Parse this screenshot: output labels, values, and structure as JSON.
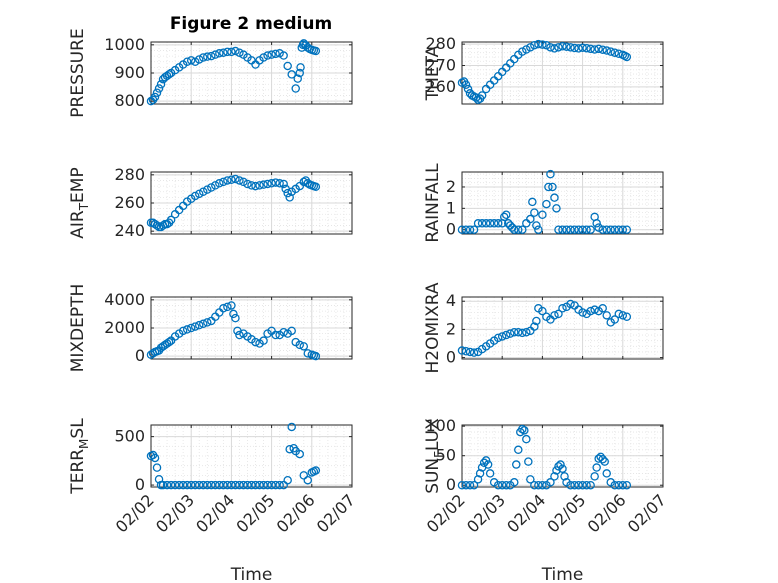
{
  "figure_title": "Figure 2 medium",
  "colors": {
    "marker": "#0072bd",
    "axis": "#262626",
    "grid": "#d9d9d9",
    "background": "#ffffff"
  },
  "chart_data": [
    {
      "type": "scatter",
      "ylabel": "PRESSURE",
      "ylabel_main": "PRESSURE",
      "ylabel_sub": "",
      "ylabel_rest": "",
      "title": "Figure 2 medium",
      "ylim": [
        790,
        1010
      ],
      "yticks": [
        800,
        900,
        1000
      ],
      "xticks": [
        "02/02",
        "02/03",
        "02/04",
        "02/05",
        "02/06",
        "02/07"
      ],
      "xlabel": "",
      "grid": true,
      "x": [
        0,
        0.05,
        0.1,
        0.15,
        0.2,
        0.25,
        0.3,
        0.35,
        0.4,
        0.45,
        0.5,
        0.6,
        0.7,
        0.8,
        0.9,
        1.0,
        1.1,
        1.2,
        1.3,
        1.4,
        1.5,
        1.6,
        1.7,
        1.8,
        1.9,
        2.0,
        2.1,
        2.2,
        2.3,
        2.4,
        2.5,
        2.6,
        2.7,
        2.8,
        2.9,
        3.0,
        3.1,
        3.2,
        3.3,
        3.4,
        3.5,
        3.6,
        3.65,
        3.7,
        3.72,
        3.75,
        3.78,
        3.8,
        3.85,
        3.9,
        3.95,
        4.0,
        4.05,
        4.1
      ],
      "y": [
        800,
        805,
        815,
        830,
        845,
        860,
        878,
        885,
        890,
        895,
        900,
        910,
        920,
        930,
        940,
        945,
        940,
        948,
        955,
        958,
        960,
        965,
        970,
        972,
        975,
        975,
        978,
        972,
        965,
        955,
        945,
        930,
        945,
        955,
        962,
        965,
        968,
        970,
        962,
        925,
        895,
        845,
        880,
        900,
        920,
        990,
        1000,
        1005,
        998,
        990,
        985,
        982,
        980,
        978
      ]
    },
    {
      "type": "scatter",
      "ylabel": "THETA",
      "ylabel_main": "THETA",
      "ylabel_sub": "",
      "ylabel_rest": "",
      "ylim": [
        252,
        281
      ],
      "yticks": [
        260,
        270,
        280
      ],
      "xticks": [
        "02/02",
        "02/03",
        "02/04",
        "02/05",
        "02/06",
        "02/07"
      ],
      "xlabel": "",
      "grid": true,
      "x": [
        0,
        0.05,
        0.1,
        0.15,
        0.2,
        0.25,
        0.3,
        0.35,
        0.4,
        0.45,
        0.5,
        0.6,
        0.7,
        0.8,
        0.9,
        1.0,
        1.1,
        1.2,
        1.3,
        1.4,
        1.5,
        1.6,
        1.7,
        1.8,
        1.9,
        2.0,
        2.1,
        2.2,
        2.3,
        2.4,
        2.5,
        2.6,
        2.7,
        2.8,
        2.9,
        3.0,
        3.1,
        3.2,
        3.3,
        3.4,
        3.5,
        3.6,
        3.7,
        3.8,
        3.9,
        4.0,
        4.05,
        4.1
      ],
      "y": [
        262,
        262.5,
        261,
        259,
        257,
        256,
        255.5,
        255,
        254,
        254.5,
        256,
        259,
        261,
        263,
        265,
        267,
        269,
        271,
        273,
        275,
        276.5,
        277.5,
        278.5,
        279.5,
        280,
        279.8,
        279.5,
        278.5,
        278,
        278.5,
        279,
        278.8,
        278.5,
        278.2,
        278,
        278.3,
        278.1,
        277.8,
        277.5,
        277.8,
        277.4,
        277,
        276.5,
        276,
        275.5,
        275,
        274.5,
        274
      ]
    },
    {
      "type": "scatter",
      "ylabel": "AIR_TEMP",
      "ylabel_main": "AIR",
      "ylabel_sub": "T",
      "ylabel_rest": "EMP",
      "ylim": [
        238,
        282
      ],
      "yticks": [
        240,
        260,
        280
      ],
      "xticks": [
        "02/02",
        "02/03",
        "02/04",
        "02/05",
        "02/06",
        "02/07"
      ],
      "xlabel": "",
      "grid": true,
      "x": [
        0,
        0.05,
        0.1,
        0.15,
        0.2,
        0.25,
        0.3,
        0.35,
        0.4,
        0.45,
        0.5,
        0.6,
        0.7,
        0.8,
        0.9,
        1.0,
        1.1,
        1.2,
        1.3,
        1.4,
        1.5,
        1.6,
        1.7,
        1.8,
        1.9,
        2.0,
        2.1,
        2.2,
        2.3,
        2.4,
        2.5,
        2.6,
        2.7,
        2.8,
        2.9,
        3.0,
        3.1,
        3.2,
        3.3,
        3.35,
        3.4,
        3.45,
        3.5,
        3.6,
        3.7,
        3.8,
        3.85,
        3.9,
        3.95,
        4.0,
        4.05,
        4.1
      ],
      "y": [
        246,
        246,
        245,
        244,
        243,
        243,
        244,
        245,
        245,
        246,
        248,
        252,
        255,
        258,
        261,
        263,
        265,
        266.5,
        268,
        269.5,
        271,
        272.5,
        274,
        275,
        276,
        276.5,
        277,
        276,
        275,
        273.5,
        272.5,
        272,
        272.5,
        273,
        273.5,
        274,
        274.5,
        274,
        273.5,
        270,
        267,
        264,
        268,
        270,
        272,
        275,
        276,
        274,
        273,
        272.5,
        272,
        271.5
      ]
    },
    {
      "type": "scatter",
      "ylabel": "RAINFALL",
      "ylabel_main": "RAINFALL",
      "ylabel_sub": "",
      "ylabel_rest": "",
      "ylim": [
        -0.2,
        2.7
      ],
      "yticks": [
        0,
        1,
        2
      ],
      "xticks": [
        "02/02",
        "02/03",
        "02/04",
        "02/05",
        "02/06",
        "02/07"
      ],
      "xlabel": "",
      "grid": true,
      "x": [
        0,
        0.1,
        0.2,
        0.3,
        0.4,
        0.5,
        0.6,
        0.7,
        0.8,
        0.9,
        1.0,
        1.05,
        1.1,
        1.15,
        1.2,
        1.25,
        1.3,
        1.4,
        1.5,
        1.6,
        1.7,
        1.75,
        1.8,
        1.85,
        1.9,
        2.0,
        2.1,
        2.15,
        2.2,
        2.25,
        2.3,
        2.35,
        2.4,
        2.5,
        2.6,
        2.7,
        2.8,
        2.9,
        3.0,
        3.1,
        3.2,
        3.3,
        3.35,
        3.4,
        3.5,
        3.6,
        3.7,
        3.8,
        3.9,
        4.0,
        4.1
      ],
      "y": [
        0,
        0,
        0,
        0,
        0.3,
        0.3,
        0.3,
        0.3,
        0.3,
        0.3,
        0.3,
        0.6,
        0.7,
        0.3,
        0.2,
        0.1,
        0,
        0,
        0,
        0.3,
        0.5,
        1.3,
        0.8,
        0.2,
        0,
        0.7,
        1.2,
        2.0,
        2.6,
        2.0,
        1.5,
        1.0,
        0,
        0,
        0,
        0,
        0,
        0,
        0,
        0,
        0,
        0.6,
        0.3,
        0.1,
        0,
        0,
        0,
        0,
        0,
        0,
        0
      ]
    },
    {
      "type": "scatter",
      "ylabel": "MIXDEPTH",
      "ylabel_main": "MIXDEPTH",
      "ylabel_sub": "",
      "ylabel_rest": "",
      "ylim": [
        -200,
        4200
      ],
      "yticks": [
        0,
        2000,
        4000
      ],
      "xticks": [
        "02/02",
        "02/03",
        "02/04",
        "02/05",
        "02/06",
        "02/07"
      ],
      "xlabel": "",
      "grid": true,
      "x": [
        0,
        0.05,
        0.1,
        0.15,
        0.2,
        0.25,
        0.3,
        0.35,
        0.4,
        0.45,
        0.5,
        0.6,
        0.7,
        0.8,
        0.9,
        1.0,
        1.1,
        1.2,
        1.3,
        1.4,
        1.5,
        1.6,
        1.7,
        1.8,
        1.9,
        2.0,
        2.05,
        2.1,
        2.15,
        2.2,
        2.3,
        2.4,
        2.5,
        2.6,
        2.7,
        2.8,
        2.9,
        3.0,
        3.1,
        3.2,
        3.3,
        3.4,
        3.5,
        3.6,
        3.7,
        3.8,
        3.9,
        4.0,
        4.05,
        4.1
      ],
      "y": [
        100,
        200,
        300,
        350,
        400,
        600,
        700,
        800,
        900,
        1000,
        1100,
        1400,
        1600,
        1800,
        1900,
        2000,
        2100,
        2200,
        2300,
        2400,
        2500,
        2800,
        3100,
        3400,
        3500,
        3600,
        3000,
        2700,
        1800,
        1500,
        1600,
        1400,
        1200,
        1000,
        900,
        1100,
        1600,
        1800,
        1500,
        1500,
        1700,
        1600,
        1800,
        1000,
        800,
        700,
        200,
        100,
        50,
        0
      ]
    },
    {
      "type": "scatter",
      "ylabel": "H2OMIXRA",
      "ylabel_main": "H2OMIXRA",
      "ylabel_sub": "",
      "ylabel_rest": "",
      "ylim": [
        -0.1,
        4.3
      ],
      "yticks": [
        0,
        2,
        4
      ],
      "xticks": [
        "02/02",
        "02/03",
        "02/04",
        "02/05",
        "02/06",
        "02/07"
      ],
      "xlabel": "",
      "grid": true,
      "x": [
        0,
        0.1,
        0.2,
        0.3,
        0.4,
        0.5,
        0.6,
        0.7,
        0.8,
        0.9,
        1.0,
        1.1,
        1.2,
        1.3,
        1.4,
        1.5,
        1.6,
        1.7,
        1.8,
        1.85,
        1.9,
        2.0,
        2.1,
        2.2,
        2.3,
        2.4,
        2.5,
        2.6,
        2.7,
        2.8,
        2.9,
        3.0,
        3.1,
        3.2,
        3.3,
        3.4,
        3.5,
        3.6,
        3.7,
        3.8,
        3.9,
        4.0,
        4.1
      ],
      "y": [
        0.5,
        0.45,
        0.4,
        0.35,
        0.4,
        0.6,
        0.8,
        1.0,
        1.2,
        1.4,
        1.5,
        1.6,
        1.7,
        1.8,
        1.8,
        1.75,
        1.8,
        1.9,
        2.2,
        2.6,
        3.5,
        3.3,
        2.9,
        2.7,
        3.0,
        3.1,
        3.5,
        3.6,
        3.8,
        3.7,
        3.4,
        3.2,
        3.1,
        3.3,
        3.4,
        3.3,
        3.5,
        3.0,
        2.5,
        2.7,
        3.1,
        3.0,
        2.9
      ]
    },
    {
      "type": "scatter",
      "ylabel": "TERR_MSL",
      "ylabel_main": "TERR",
      "ylabel_sub": "M",
      "ylabel_rest": "SL",
      "ylim": [
        -20,
        620
      ],
      "yticks": [
        0,
        500
      ],
      "xticks": [
        "02/02",
        "02/03",
        "02/04",
        "02/05",
        "02/06",
        "02/07"
      ],
      "xlabel": "Time",
      "grid": true,
      "x": [
        0,
        0.05,
        0.1,
        0.15,
        0.2,
        0.25,
        0.3,
        0.4,
        0.5,
        0.6,
        0.7,
        0.8,
        0.9,
        1.0,
        1.1,
        1.2,
        1.3,
        1.4,
        1.5,
        1.6,
        1.7,
        1.8,
        1.9,
        2.0,
        2.1,
        2.2,
        2.3,
        2.4,
        2.5,
        2.6,
        2.7,
        2.8,
        2.9,
        3.0,
        3.1,
        3.2,
        3.3,
        3.4,
        3.45,
        3.5,
        3.55,
        3.6,
        3.7,
        3.8,
        3.9,
        4.0,
        4.05,
        4.1
      ],
      "y": [
        300,
        310,
        280,
        180,
        60,
        0,
        0,
        0,
        0,
        0,
        0,
        0,
        0,
        0,
        0,
        0,
        0,
        0,
        0,
        0,
        0,
        0,
        0,
        0,
        0,
        0,
        0,
        0,
        0,
        0,
        0,
        0,
        0,
        0,
        0,
        0,
        0,
        50,
        370,
        600,
        380,
        350,
        320,
        100,
        50,
        130,
        140,
        150
      ]
    },
    {
      "type": "scatter",
      "ylabel": "SUN_FLUX",
      "ylabel_main": "SUN",
      "ylabel_sub": "F",
      "ylabel_rest": "LUX",
      "ylim": [
        -3,
        102
      ],
      "yticks": [
        0,
        50,
        100
      ],
      "xticks": [
        "02/02",
        "02/03",
        "02/04",
        "02/05",
        "02/06",
        "02/07"
      ],
      "xlabel": "Time",
      "grid": true,
      "x": [
        0,
        0.1,
        0.2,
        0.3,
        0.4,
        0.45,
        0.5,
        0.55,
        0.6,
        0.65,
        0.7,
        0.8,
        0.9,
        1.0,
        1.1,
        1.2,
        1.3,
        1.35,
        1.4,
        1.45,
        1.5,
        1.55,
        1.6,
        1.65,
        1.7,
        1.8,
        1.9,
        2.0,
        2.1,
        2.2,
        2.3,
        2.35,
        2.4,
        2.45,
        2.5,
        2.55,
        2.6,
        2.7,
        2.8,
        2.9,
        3.0,
        3.1,
        3.2,
        3.3,
        3.35,
        3.4,
        3.45,
        3.5,
        3.55,
        3.6,
        3.7,
        3.8,
        3.9,
        4.0,
        4.1
      ],
      "y": [
        0,
        0,
        0,
        0,
        10,
        20,
        30,
        38,
        42,
        35,
        20,
        5,
        0,
        0,
        0,
        0,
        5,
        35,
        60,
        90,
        95,
        93,
        78,
        40,
        10,
        0,
        0,
        0,
        0,
        5,
        15,
        25,
        32,
        35,
        28,
        15,
        5,
        0,
        0,
        0,
        0,
        0,
        0,
        15,
        30,
        45,
        48,
        44,
        40,
        20,
        5,
        0,
        0,
        0,
        0
      ]
    }
  ]
}
